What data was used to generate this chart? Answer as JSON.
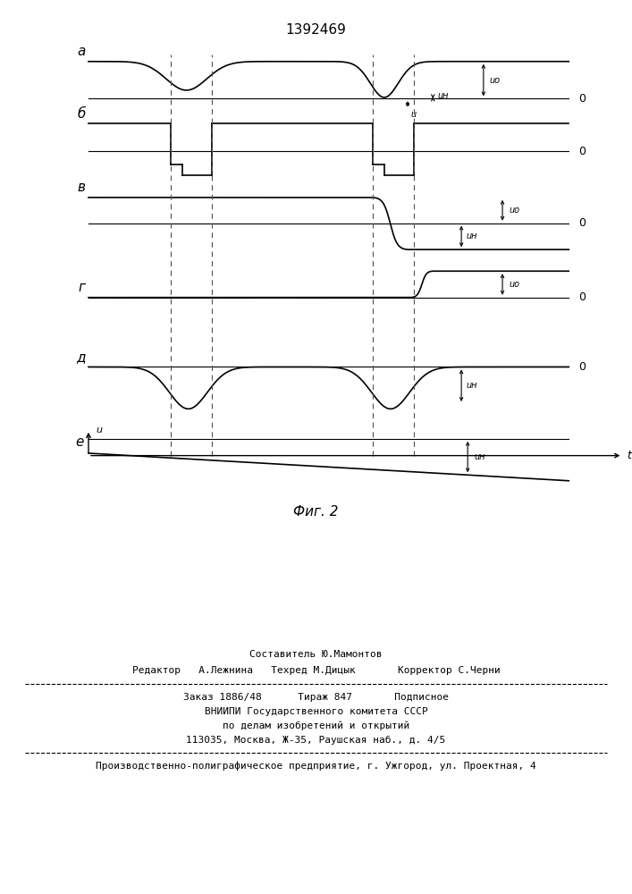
{
  "title": "1392469",
  "fig_caption": "Фиг. 2",
  "background_color": "#ffffff",
  "line_color": "#000000",
  "dashed_color": "#555555",
  "label_a": "а",
  "label_b": "б",
  "label_v": "в",
  "label_g": "г",
  "label_d": "д",
  "label_e": "е",
  "ann_Un": "uн",
  "ann_U0": "uо",
  "ann_u": "u",
  "ann_t": "t",
  "footer0": "Составитель Ю.Мамонтов",
  "footer1": "Редактор   А.Лежнина   Техред М.Дицык       Корректор С.Черни",
  "footer2": "Заказ 1886/48      Тираж 847       Подписное",
  "footer3": "ВНИИПИ Государственного комитета СССР",
  "footer4": "по делам изобретений и открытий",
  "footer5": "113035, Москва, Ж-35, Раушская наб., д. 4/5",
  "footer6": "Производственно-полиграфическое предприятие, г. Ужгород, ул. Проектная, 4"
}
